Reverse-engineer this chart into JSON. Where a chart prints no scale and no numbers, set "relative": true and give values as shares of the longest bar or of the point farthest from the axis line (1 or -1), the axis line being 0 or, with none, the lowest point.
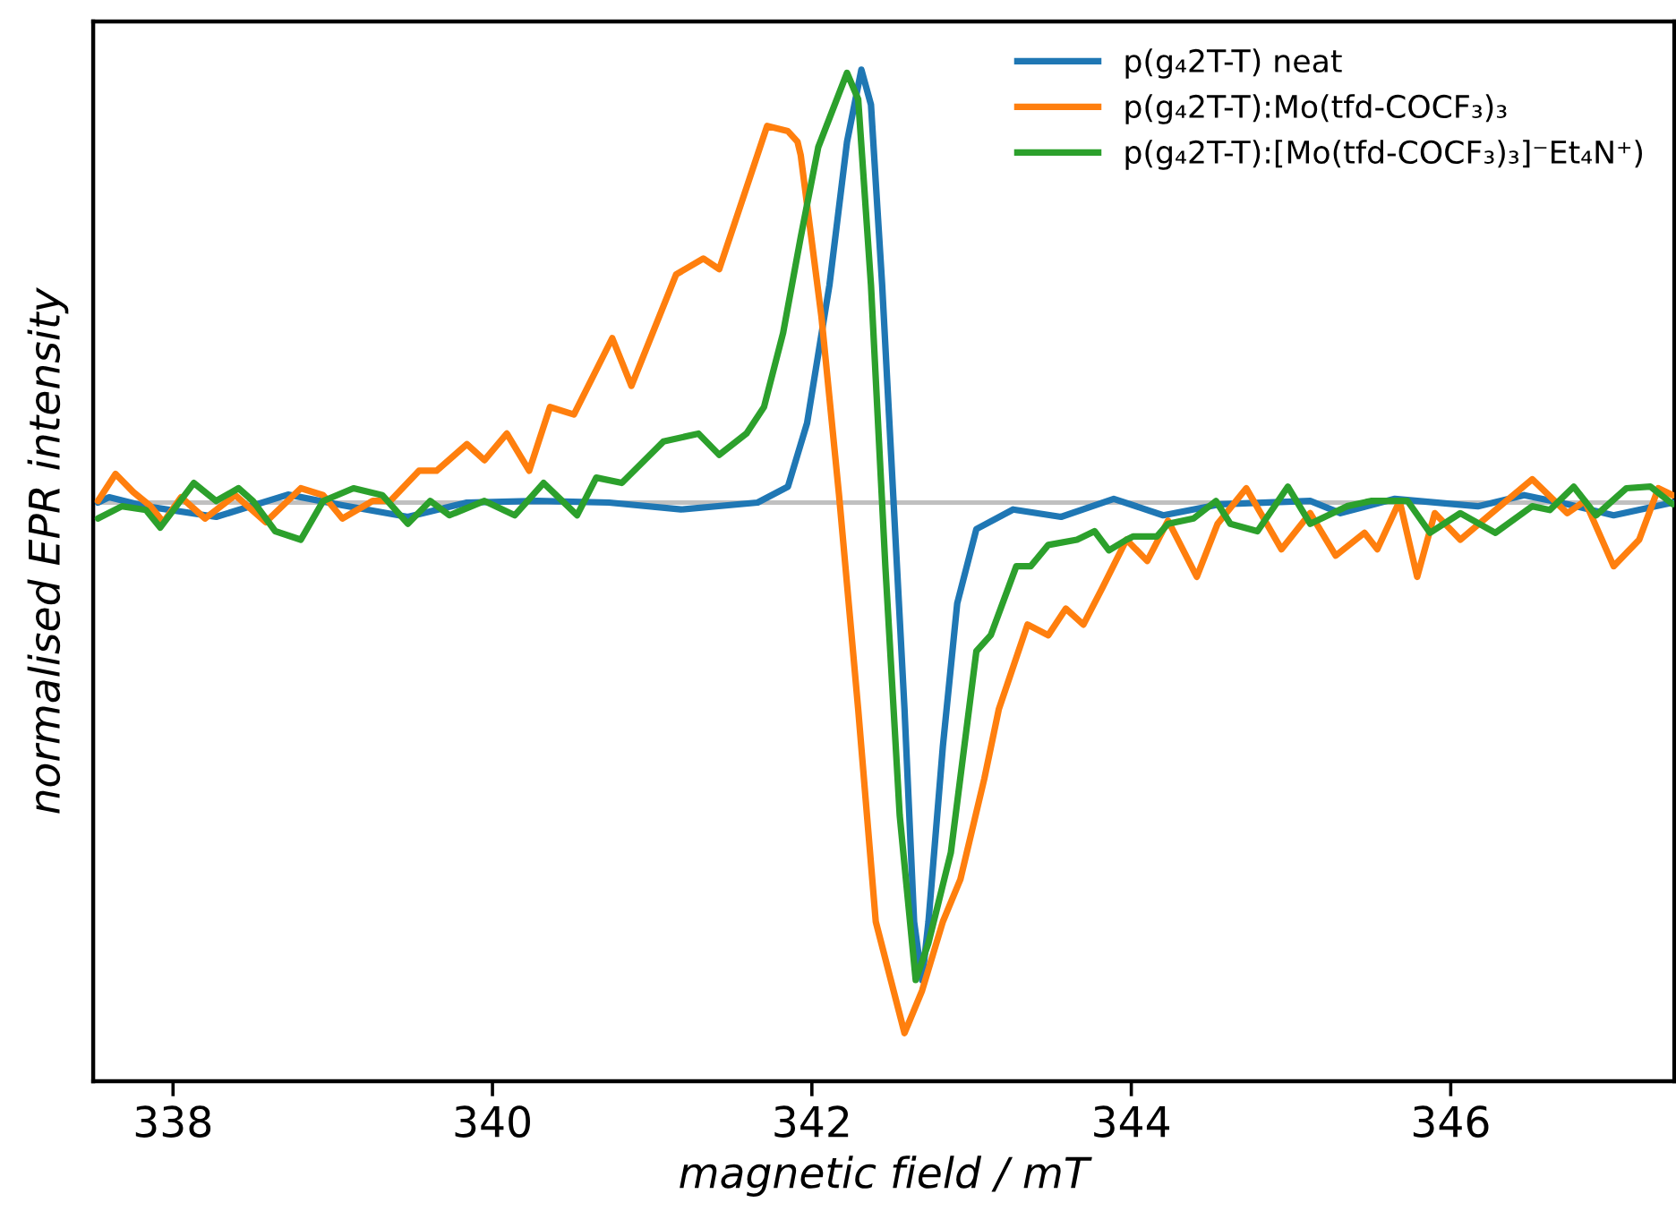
{
  "chart_data": {
    "type": "line",
    "xlabel": "magnetic field / mT",
    "ylabel": "normalised EPR intensity",
    "relative": true,
    "xlim": [
      337.5,
      347.4
    ],
    "xticks": [
      338,
      340,
      342,
      344,
      346
    ],
    "legend": "top right",
    "grid": false,
    "ref_lines": [
      {
        "axis": "y",
        "value": 0,
        "color": "#c0c0c0"
      }
    ],
    "series": [
      {
        "name": "p(g₄2T-T) neat",
        "color": "#1f77b4",
        "x": [
          337.53,
          337.6,
          337.83,
          338.27,
          338.72,
          339.06,
          339.47,
          339.84,
          340.28,
          340.73,
          341.18,
          341.66,
          341.85,
          341.97,
          342.11,
          342.22,
          342.31,
          342.37,
          342.44,
          342.51,
          342.58,
          342.64,
          342.69,
          342.73,
          342.82,
          342.91,
          343.03,
          343.26,
          343.56,
          343.89,
          344.2,
          344.56,
          345.12,
          345.31,
          345.65,
          346.17,
          346.46,
          346.73,
          347.02,
          347.39
        ],
        "values": [
          0.0,
          0.01,
          -0.007,
          -0.027,
          0.015,
          -0.005,
          -0.027,
          0.0,
          0.003,
          0.0,
          -0.013,
          0.0,
          0.03,
          0.15,
          0.41,
          0.68,
          0.816,
          0.75,
          0.41,
          0.01,
          -0.39,
          -0.79,
          -0.9,
          -0.79,
          -0.46,
          -0.19,
          -0.05,
          -0.013,
          -0.027,
          0.007,
          -0.024,
          -0.003,
          0.003,
          -0.02,
          0.007,
          -0.007,
          0.014,
          -0.003,
          -0.024,
          0.0
        ]
      },
      {
        "name": "p(g₄2T-T):Mo(tfd-COCF₃)₃",
        "color": "#ff7f0e",
        "x": [
          337.53,
          337.64,
          337.75,
          337.86,
          337.94,
          338.05,
          338.2,
          338.39,
          338.58,
          338.8,
          338.94,
          339.06,
          339.25,
          339.36,
          339.54,
          339.65,
          339.84,
          339.95,
          340.09,
          340.23,
          340.36,
          340.51,
          340.75,
          340.87,
          341.15,
          341.32,
          341.42,
          341.72,
          341.85,
          341.91,
          341.93,
          342.06,
          342.17,
          342.29,
          342.4,
          342.58,
          342.69,
          342.82,
          342.93,
          343.08,
          343.17,
          343.35,
          343.48,
          343.59,
          343.7,
          343.82,
          343.97,
          344.1,
          344.23,
          344.41,
          344.54,
          344.72,
          344.94,
          345.12,
          345.28,
          345.46,
          345.54,
          345.68,
          345.79,
          345.9,
          346.06,
          346.24,
          346.51,
          346.73,
          346.84,
          347.02,
          347.18,
          347.3,
          347.39
        ],
        "values": [
          0.003,
          0.054,
          0.02,
          -0.007,
          -0.037,
          0.01,
          -0.03,
          0.014,
          -0.037,
          0.027,
          0.014,
          -0.03,
          0.003,
          0.003,
          0.06,
          0.06,
          0.11,
          0.08,
          0.13,
          0.06,
          0.18,
          0.166,
          0.31,
          0.22,
          0.43,
          0.46,
          0.44,
          0.71,
          0.7,
          0.68,
          0.655,
          0.35,
          0.014,
          -0.39,
          -0.79,
          -1.0,
          -0.92,
          -0.79,
          -0.71,
          -0.52,
          -0.39,
          -0.23,
          -0.25,
          -0.2,
          -0.23,
          -0.16,
          -0.07,
          -0.11,
          -0.034,
          -0.14,
          -0.04,
          0.027,
          -0.088,
          -0.02,
          -0.1,
          -0.057,
          -0.088,
          0.003,
          -0.14,
          -0.02,
          -0.07,
          -0.024,
          0.044,
          -0.02,
          0.003,
          -0.12,
          -0.07,
          0.027,
          0.014
        ]
      },
      {
        "name": "p(g₄2T-T):[Mo(tfd-COCF₃)₃]⁻Et₄N⁺)",
        "color": "#2ca02c",
        "x": [
          337.53,
          337.68,
          337.83,
          337.92,
          338.13,
          338.27,
          338.41,
          338.5,
          338.64,
          338.8,
          338.94,
          339.13,
          339.31,
          339.47,
          339.61,
          339.73,
          339.95,
          340.14,
          340.32,
          340.53,
          340.65,
          340.81,
          341.07,
          341.29,
          341.42,
          341.59,
          341.7,
          341.82,
          341.93,
          342.04,
          342.22,
          342.29,
          342.37,
          342.46,
          342.55,
          342.65,
          342.73,
          342.87,
          343.03,
          343.12,
          343.28,
          343.37,
          343.48,
          343.66,
          343.77,
          343.86,
          343.97,
          344.01,
          344.16,
          344.23,
          344.39,
          344.53,
          344.62,
          344.79,
          344.98,
          345.12,
          345.35,
          345.5,
          345.73,
          345.87,
          346.06,
          346.28,
          346.51,
          346.62,
          346.77,
          346.91,
          347.1,
          347.25,
          347.39
        ],
        "values": [
          -0.03,
          -0.007,
          -0.014,
          -0.047,
          0.037,
          0.003,
          0.027,
          0.003,
          -0.054,
          -0.07,
          0.003,
          0.027,
          0.014,
          -0.04,
          0.003,
          -0.024,
          0.003,
          -0.024,
          0.037,
          -0.024,
          0.047,
          0.037,
          0.115,
          0.13,
          0.09,
          0.13,
          0.18,
          0.32,
          0.5,
          0.67,
          0.81,
          0.76,
          0.41,
          -0.12,
          -0.59,
          -0.9,
          -0.83,
          -0.66,
          -0.28,
          -0.25,
          -0.12,
          -0.12,
          -0.08,
          -0.07,
          -0.054,
          -0.09,
          -0.07,
          -0.064,
          -0.064,
          -0.04,
          -0.03,
          0.003,
          -0.04,
          -0.054,
          0.03,
          -0.04,
          -0.007,
          0.003,
          0.003,
          -0.057,
          -0.02,
          -0.057,
          -0.007,
          -0.014,
          0.03,
          -0.024,
          0.027,
          0.03,
          -0.003
        ]
      }
    ]
  }
}
